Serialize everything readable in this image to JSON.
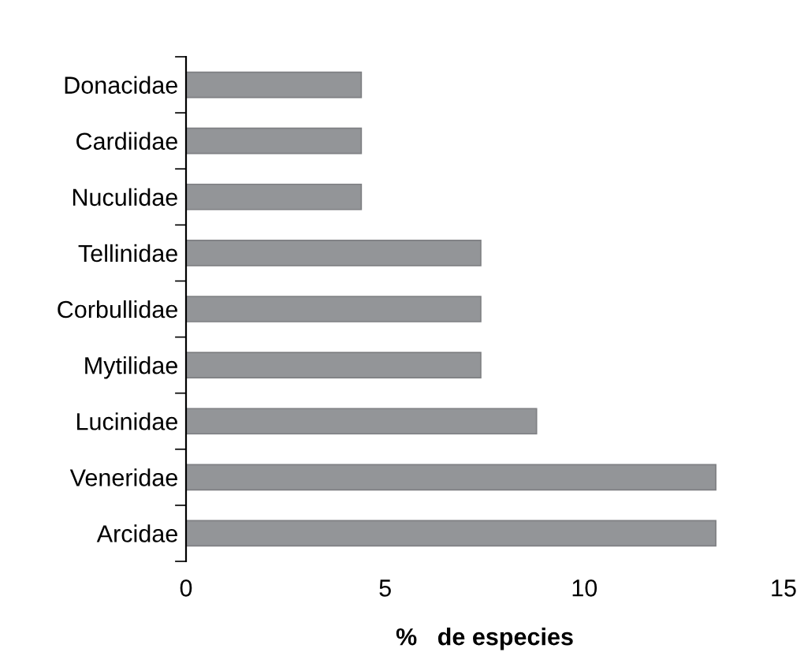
{
  "chart_data": {
    "type": "bar",
    "orientation": "horizontal",
    "xlabel": "%   de especies",
    "categories": [
      "Donacidae",
      "Cardiidae",
      "Nuculidae",
      "Tellinidae",
      "Corbullidae",
      "Mytilidae",
      "Lucinidae",
      "Veneridae",
      "Arcidae"
    ],
    "values": [
      4.4,
      4.4,
      4.4,
      7.4,
      7.4,
      7.4,
      8.8,
      13.3,
      13.3
    ],
    "color": "#939598",
    "xlim": [
      0,
      15
    ],
    "xticks": [
      0,
      5,
      10,
      15
    ],
    "grid": false,
    "legend": false
  }
}
